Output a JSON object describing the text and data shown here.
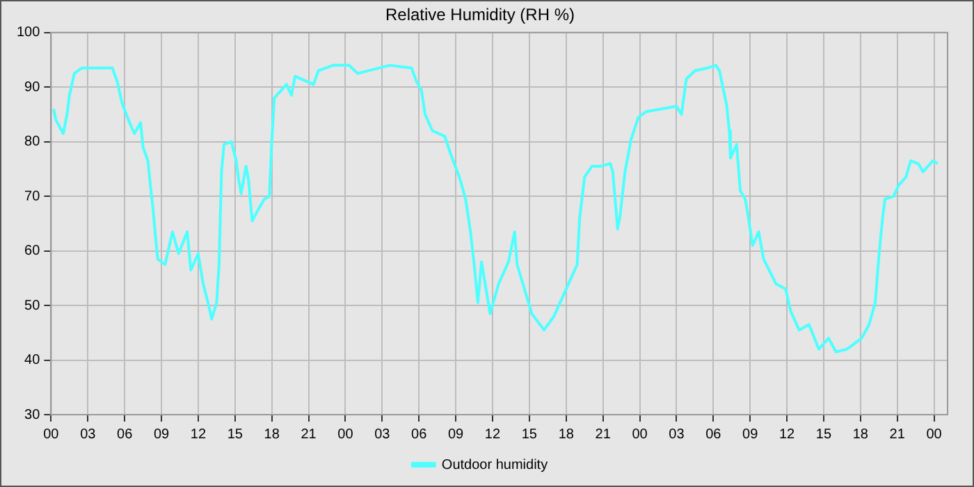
{
  "chart_data": {
    "type": "line",
    "title": "Relative Humidity (RH %)",
    "x": [
      0.2,
      0.4,
      1,
      1.3,
      1.5,
      1.9,
      2.5,
      5.0,
      5.4,
      5.8,
      6.4,
      6.8,
      7.3,
      7.5,
      7.9,
      8.1,
      8.3,
      8.5,
      8.7,
      9.3,
      9.9,
      10.4,
      11.1,
      11.4,
      12.0,
      12.4,
      12.8,
      13.1,
      13.5,
      13.7,
      13.9,
      14.1,
      14.7,
      15.1,
      15.3,
      15.5,
      15.9,
      16.1,
      16.4,
      17.0,
      17.4,
      17.8,
      18.0,
      18.2,
      18.6,
      19.2,
      19.6,
      19.9,
      21.4,
      21.8,
      23.0,
      24.3,
      25.0,
      27.6,
      29.4,
      29.8,
      30.2,
      30.5,
      31.1,
      32.1,
      32.7,
      33.3,
      33.8,
      34.2,
      34.5,
      34.8,
      35.1,
      35.8,
      36.5,
      37.3,
      37.8,
      38.0,
      38.6,
      39.2,
      40.2,
      41.0,
      41.7,
      42.5,
      42.9,
      43.1,
      43.5,
      44.1,
      44.8,
      45.6,
      45.8,
      46.2,
      46.4,
      46.8,
      47.3,
      47.9,
      48.5,
      51.0,
      51.4,
      51.8,
      52.5,
      53.5,
      54.2,
      54.5,
      55.1,
      55.3,
      55.4,
      55.9,
      56.2,
      56.6,
      56.8,
      57.2,
      57.7,
      58.1,
      59.1,
      59.9,
      60.3,
      61.0,
      61.8,
      62.6,
      63.4,
      64.0,
      64.9,
      66.1,
      66.7,
      67.2,
      67.5,
      67.8,
      68.0,
      68.7,
      69.1,
      69.7,
      70.1,
      70.7,
      71.1,
      71.9,
      72.3
    ],
    "series": [
      {
        "name": "Outdoor humidity",
        "color": "#4dffff",
        "values": [
          86,
          84,
          81.5,
          85,
          88.5,
          92.5,
          93.5,
          93.5,
          91,
          87,
          83.5,
          81.5,
          83.5,
          79,
          76.5,
          72,
          68,
          63,
          58.5,
          57.5,
          63.5,
          59.5,
          63.5,
          56.5,
          59.5,
          54,
          50.5,
          47.5,
          50.5,
          57.5,
          74.5,
          79.5,
          80,
          76.5,
          73,
          70.5,
          75.5,
          73,
          65.5,
          68,
          69.5,
          70,
          80,
          88,
          89,
          90.5,
          88.5,
          92,
          90.5,
          93,
          94,
          94,
          92.5,
          94,
          93.5,
          91,
          89.5,
          85,
          82,
          81,
          77,
          73.5,
          69.5,
          63.5,
          57.5,
          50.5,
          58,
          48.5,
          54,
          58,
          63.5,
          57.5,
          53,
          48.5,
          45.5,
          48,
          51.5,
          55.5,
          57.5,
          66,
          73.5,
          75.5,
          75.5,
          76,
          74.5,
          64,
          66.5,
          74.5,
          80.5,
          84.5,
          85.5,
          86.5,
          85,
          91.5,
          93,
          93.5,
          94,
          93,
          86.5,
          82,
          77,
          79.5,
          71,
          69.5,
          67,
          61,
          63.5,
          58.5,
          54,
          53,
          49,
          45.5,
          46.5,
          42,
          44,
          41.5,
          42,
          44,
          46.5,
          50.5,
          59,
          66,
          69.5,
          70,
          72,
          73.5,
          76.5,
          76,
          74.5,
          76.5,
          76
        ]
      }
    ],
    "xlim": [
      0,
      73.1
    ],
    "xticks": [
      {
        "value": 0,
        "label": "00"
      },
      {
        "value": 3,
        "label": "03"
      },
      {
        "value": 6,
        "label": "06"
      },
      {
        "value": 9,
        "label": "09"
      },
      {
        "value": 12,
        "label": "12"
      },
      {
        "value": 15,
        "label": "15"
      },
      {
        "value": 18,
        "label": "18"
      },
      {
        "value": 21,
        "label": "21"
      },
      {
        "value": 24,
        "label": "00"
      },
      {
        "value": 27,
        "label": "03"
      },
      {
        "value": 30,
        "label": "06"
      },
      {
        "value": 33,
        "label": "09"
      },
      {
        "value": 36,
        "label": "12"
      },
      {
        "value": 39,
        "label": "15"
      },
      {
        "value": 42,
        "label": "18"
      },
      {
        "value": 45,
        "label": "21"
      },
      {
        "value": 48,
        "label": "00"
      },
      {
        "value": 51,
        "label": "03"
      },
      {
        "value": 54,
        "label": "06"
      },
      {
        "value": 57,
        "label": "09"
      },
      {
        "value": 60,
        "label": "12"
      },
      {
        "value": 63,
        "label": "15"
      },
      {
        "value": 66,
        "label": "18"
      },
      {
        "value": 69,
        "label": "21"
      },
      {
        "value": 72,
        "label": "00"
      }
    ],
    "ylim": [
      30,
      100
    ],
    "yticks": [
      30,
      40,
      50,
      60,
      70,
      80,
      90,
      100
    ],
    "grid": true,
    "legend": "bottom",
    "marker": "none",
    "line_style": "solid"
  }
}
